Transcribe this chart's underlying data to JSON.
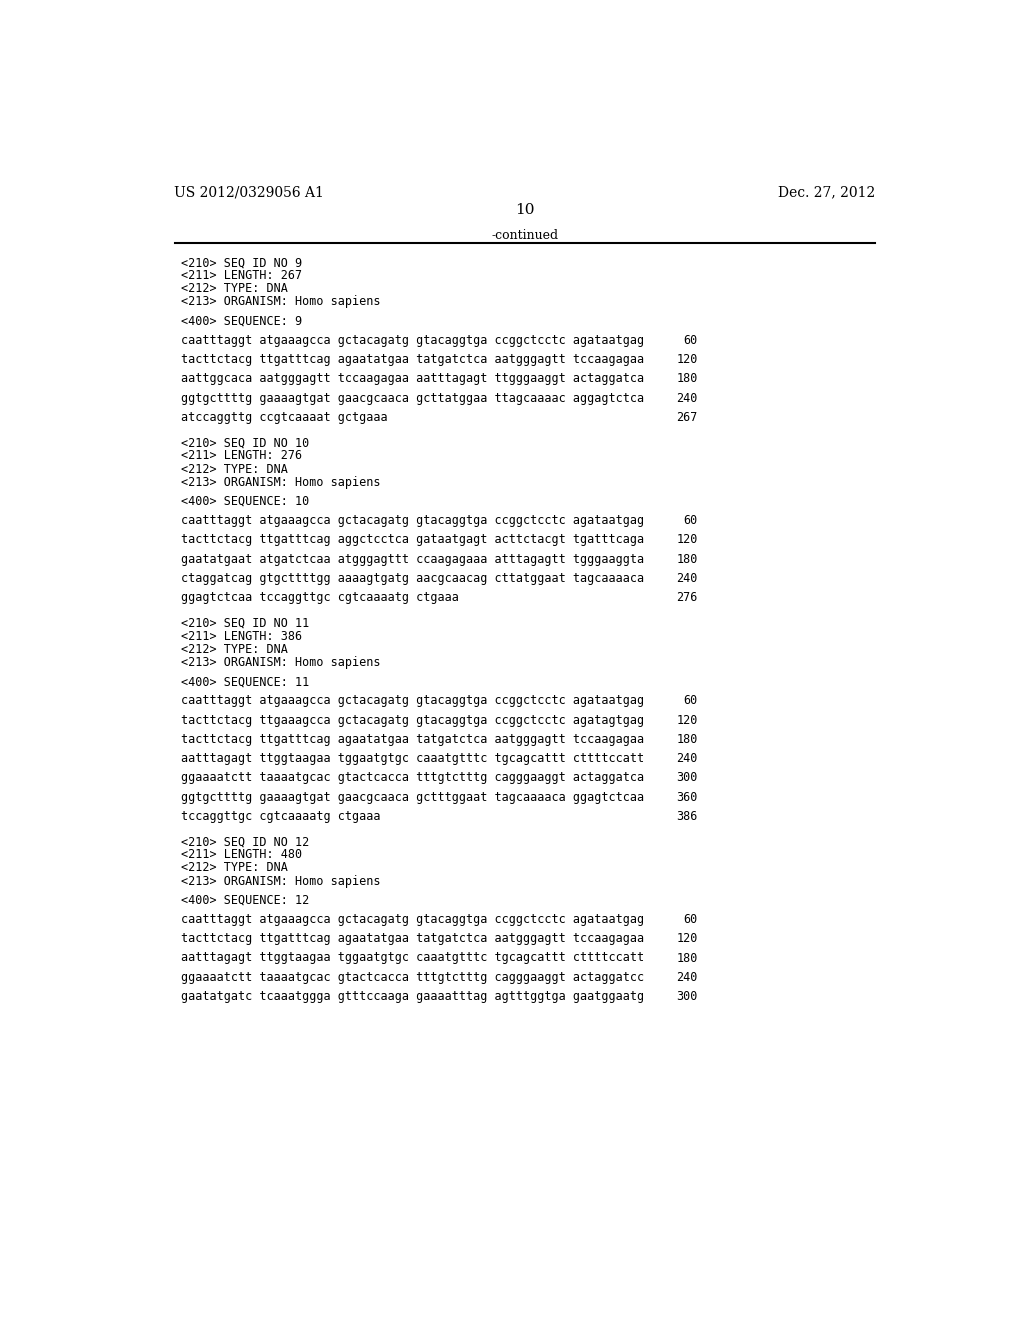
{
  "background_color": "#ffffff",
  "header_left": "US 2012/0329056 A1",
  "header_right": "Dec. 27, 2012",
  "page_number": "10",
  "continued_text": "-continued",
  "font_size_header": 10,
  "font_size_page_num": 11,
  "font_size_body": 8.5,
  "font_size_continued": 9,
  "content": [
    {
      "type": "meta",
      "lines": [
        "<210> SEQ ID NO 9",
        "<211> LENGTH: 267",
        "<212> TYPE: DNA",
        "<213> ORGANISM: Homo sapiens"
      ]
    },
    {
      "type": "blank"
    },
    {
      "type": "seq_label",
      "text": "<400> SEQUENCE: 9"
    },
    {
      "type": "blank"
    },
    {
      "type": "seq_line",
      "seq": "caatttaggt atgaaagcca gctacagatg gtacaggtga ccggctcctc agataatgag",
      "num": "60"
    },
    {
      "type": "blank"
    },
    {
      "type": "seq_line",
      "seq": "tacttctacg ttgatttcag agaatatgaa tatgatctca aatgggagtt tccaagagaa",
      "num": "120"
    },
    {
      "type": "blank"
    },
    {
      "type": "seq_line",
      "seq": "aattggcaca aatgggagtt tccaagagaa aatttagagt ttgggaaggt actaggatca",
      "num": "180"
    },
    {
      "type": "blank"
    },
    {
      "type": "seq_line",
      "seq": "ggtgcttttg gaaaagtgat gaacgcaaca gcttatggaa ttagcaaaac aggagtctca",
      "num": "240"
    },
    {
      "type": "blank"
    },
    {
      "type": "seq_line",
      "seq": "atccaggttg ccgtcaaaat gctgaaa",
      "num": "267"
    },
    {
      "type": "blank"
    },
    {
      "type": "blank"
    },
    {
      "type": "meta",
      "lines": [
        "<210> SEQ ID NO 10",
        "<211> LENGTH: 276",
        "<212> TYPE: DNA",
        "<213> ORGANISM: Homo sapiens"
      ]
    },
    {
      "type": "blank"
    },
    {
      "type": "seq_label",
      "text": "<400> SEQUENCE: 10"
    },
    {
      "type": "blank"
    },
    {
      "type": "seq_line",
      "seq": "caatttaggt atgaaagcca gctacagatg gtacaggtga ccggctcctc agataatgag",
      "num": "60"
    },
    {
      "type": "blank"
    },
    {
      "type": "seq_line",
      "seq": "tacttctacg ttgatttcag aggctcctca gataatgagt acttctacgt tgatttcaga",
      "num": "120"
    },
    {
      "type": "blank"
    },
    {
      "type": "seq_line",
      "seq": "gaatatgaat atgatctcaa atgggagttt ccaagagaaa atttagagtt tgggaaggta",
      "num": "180"
    },
    {
      "type": "blank"
    },
    {
      "type": "seq_line",
      "seq": "ctaggatcag gtgcttttgg aaaagtgatg aacgcaacag cttatggaat tagcaaaaca",
      "num": "240"
    },
    {
      "type": "blank"
    },
    {
      "type": "seq_line",
      "seq": "ggagtctcaa tccaggttgc cgtcaaaatg ctgaaa",
      "num": "276"
    },
    {
      "type": "blank"
    },
    {
      "type": "blank"
    },
    {
      "type": "meta",
      "lines": [
        "<210> SEQ ID NO 11",
        "<211> LENGTH: 386",
        "<212> TYPE: DNA",
        "<213> ORGANISM: Homo sapiens"
      ]
    },
    {
      "type": "blank"
    },
    {
      "type": "seq_label",
      "text": "<400> SEQUENCE: 11"
    },
    {
      "type": "blank"
    },
    {
      "type": "seq_line",
      "seq": "caatttaggt atgaaagcca gctacagatg gtacaggtga ccggctcctc agataatgag",
      "num": "60"
    },
    {
      "type": "blank"
    },
    {
      "type": "seq_line",
      "seq": "tacttctacg ttgaaagcca gctacagatg gtacaggtga ccggctcctc agatagtgag",
      "num": "120"
    },
    {
      "type": "blank"
    },
    {
      "type": "seq_line",
      "seq": "tacttctacg ttgatttcag agaatatgaa tatgatctca aatgggagtt tccaagagaa",
      "num": "180"
    },
    {
      "type": "blank"
    },
    {
      "type": "seq_line",
      "seq": "aatttagagt ttggtaagaa tggaatgtgc caaatgtttc tgcagcattt cttttccatt",
      "num": "240"
    },
    {
      "type": "blank"
    },
    {
      "type": "seq_line",
      "seq": "ggaaaatctt taaaatgcac gtactcacca tttgtctttg cagggaaggt actaggatca",
      "num": "300"
    },
    {
      "type": "blank"
    },
    {
      "type": "seq_line",
      "seq": "ggtgcttttg gaaaagtgat gaacgcaaca gctttggaat tagcaaaaca ggagtctcaa",
      "num": "360"
    },
    {
      "type": "blank"
    },
    {
      "type": "seq_line",
      "seq": "tccaggttgc cgtcaaaatg ctgaaa",
      "num": "386"
    },
    {
      "type": "blank"
    },
    {
      "type": "blank"
    },
    {
      "type": "meta",
      "lines": [
        "<210> SEQ ID NO 12",
        "<211> LENGTH: 480",
        "<212> TYPE: DNA",
        "<213> ORGANISM: Homo sapiens"
      ]
    },
    {
      "type": "blank"
    },
    {
      "type": "seq_label",
      "text": "<400> SEQUENCE: 12"
    },
    {
      "type": "blank"
    },
    {
      "type": "seq_line",
      "seq": "caatttaggt atgaaagcca gctacagatg gtacaggtga ccggctcctc agataatgag",
      "num": "60"
    },
    {
      "type": "blank"
    },
    {
      "type": "seq_line",
      "seq": "tacttctacg ttgatttcag agaatatgaa tatgatctca aatgggagtt tccaagagaa",
      "num": "120"
    },
    {
      "type": "blank"
    },
    {
      "type": "seq_line",
      "seq": "aatttagagt ttggtaagaa tggaatgtgc caaatgtttc tgcagcattt cttttccatt",
      "num": "180"
    },
    {
      "type": "blank"
    },
    {
      "type": "seq_line",
      "seq": "ggaaaatctt taaaatgcac gtactcacca tttgtctttg cagggaaggt actaggatcc",
      "num": "240"
    },
    {
      "type": "blank"
    },
    {
      "type": "seq_line",
      "seq": "gaatatgatc tcaaatggga gtttccaaga gaaaatttag agtttggtga gaatggaatg",
      "num": "300"
    }
  ]
}
